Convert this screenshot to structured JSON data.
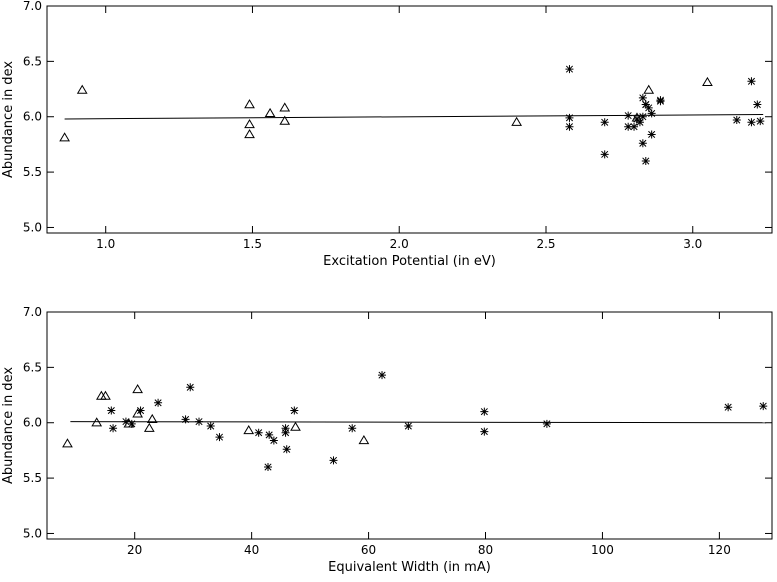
{
  "chart_data": [
    {
      "type": "scatter",
      "title": "",
      "xlabel": "Excitation Potential (in eV)",
      "ylabel": "Abundance in dex",
      "xlim": [
        0.8,
        3.27
      ],
      "ylim": [
        4.95,
        7.0
      ],
      "xticks": [
        1.0,
        1.5,
        2.0,
        2.5,
        3.0
      ],
      "xtick_labels": [
        "1.0",
        "1.5",
        "2.0",
        "2.5",
        "3.0"
      ],
      "yticks": [
        5.0,
        5.5,
        6.0,
        6.5,
        7.0
      ],
      "ytick_labels": [
        "5.0",
        "5.5",
        "6.0",
        "6.5",
        "7.0"
      ],
      "grid": false,
      "legend": "none",
      "fit_line": {
        "x": [
          0.86,
          3.24
        ],
        "y": [
          5.98,
          6.02
        ]
      },
      "series": [
        {
          "marker": "triangle",
          "points": [
            [
              0.86,
              5.81
            ],
            [
              0.92,
              6.24
            ],
            [
              1.49,
              6.11
            ],
            [
              1.49,
              5.93
            ],
            [
              1.49,
              5.84
            ],
            [
              1.56,
              6.03
            ],
            [
              1.61,
              6.08
            ],
            [
              1.61,
              5.96
            ],
            [
              2.4,
              5.95
            ],
            [
              2.81,
              5.99
            ],
            [
              2.85,
              6.24
            ],
            [
              3.05,
              6.31
            ]
          ]
        },
        {
          "marker": "asterisk",
          "points": [
            [
              2.58,
              6.43
            ],
            [
              2.58,
              5.99
            ],
            [
              2.58,
              5.91
            ],
            [
              2.7,
              5.95
            ],
            [
              2.7,
              5.66
            ],
            [
              2.78,
              6.01
            ],
            [
              2.78,
              5.91
            ],
            [
              2.8,
              5.91
            ],
            [
              2.81,
              5.98
            ],
            [
              2.82,
              5.95
            ],
            [
              2.83,
              6.0
            ],
            [
              2.83,
              6.17
            ],
            [
              2.84,
              6.11
            ],
            [
              2.84,
              6.11
            ],
            [
              2.83,
              5.76
            ],
            [
              2.84,
              5.6
            ],
            [
              2.85,
              6.08
            ],
            [
              2.86,
              6.03
            ],
            [
              2.86,
              5.84
            ],
            [
              2.89,
              6.15
            ],
            [
              2.89,
              6.14
            ],
            [
              3.15,
              5.97
            ],
            [
              3.2,
              6.32
            ],
            [
              3.2,
              5.95
            ],
            [
              3.22,
              6.11
            ],
            [
              3.23,
              5.96
            ]
          ]
        }
      ]
    },
    {
      "type": "scatter",
      "title": "",
      "xlabel": "Equivalent Width (in mA)",
      "ylabel": "Abundance in dex",
      "xlim": [
        5,
        129
      ],
      "ylim": [
        4.95,
        7.0
      ],
      "xticks": [
        20,
        40,
        60,
        80,
        100,
        120
      ],
      "xtick_labels": [
        "20",
        "40",
        "60",
        "80",
        "100",
        "120"
      ],
      "yticks": [
        5.0,
        5.5,
        6.0,
        6.5,
        7.0
      ],
      "ytick_labels": [
        "5.0",
        "5.5",
        "6.0",
        "6.5",
        "7.0"
      ],
      "grid": false,
      "legend": "none",
      "fit_line": {
        "x": [
          9,
          128
        ],
        "y": [
          6.01,
          6.0
        ]
      },
      "series": [
        {
          "marker": "triangle",
          "points": [
            [
              8.5,
              5.81
            ],
            [
              13.5,
              6.0
            ],
            [
              14.3,
              6.24
            ],
            [
              15.0,
              6.24
            ],
            [
              19.0,
              5.99
            ],
            [
              20.5,
              6.3
            ],
            [
              20.5,
              6.08
            ],
            [
              22.5,
              5.95
            ],
            [
              23.0,
              6.03
            ],
            [
              39.5,
              5.93
            ],
            [
              47.5,
              5.96
            ],
            [
              59.2,
              5.84
            ]
          ]
        },
        {
          "marker": "asterisk",
          "points": [
            [
              16.0,
              6.11
            ],
            [
              16.3,
              5.95
            ],
            [
              18.5,
              6.01
            ],
            [
              19.5,
              5.99
            ],
            [
              21.0,
              6.11
            ],
            [
              24.0,
              6.18
            ],
            [
              28.7,
              6.03
            ],
            [
              29.5,
              6.32
            ],
            [
              31.0,
              6.01
            ],
            [
              33.0,
              5.97
            ],
            [
              34.5,
              5.87
            ],
            [
              41.2,
              5.91
            ],
            [
              42.8,
              5.6
            ],
            [
              43.0,
              5.89
            ],
            [
              43.8,
              5.84
            ],
            [
              45.8,
              5.91
            ],
            [
              45.8,
              5.95
            ],
            [
              46.0,
              5.76
            ],
            [
              47.3,
              6.11
            ],
            [
              54.0,
              5.66
            ],
            [
              57.2,
              5.95
            ],
            [
              62.3,
              6.43
            ],
            [
              66.8,
              5.97
            ],
            [
              79.8,
              6.1
            ],
            [
              79.8,
              5.92
            ],
            [
              90.5,
              5.99
            ],
            [
              121.5,
              6.14
            ],
            [
              127.5,
              6.15
            ]
          ]
        }
      ]
    }
  ]
}
